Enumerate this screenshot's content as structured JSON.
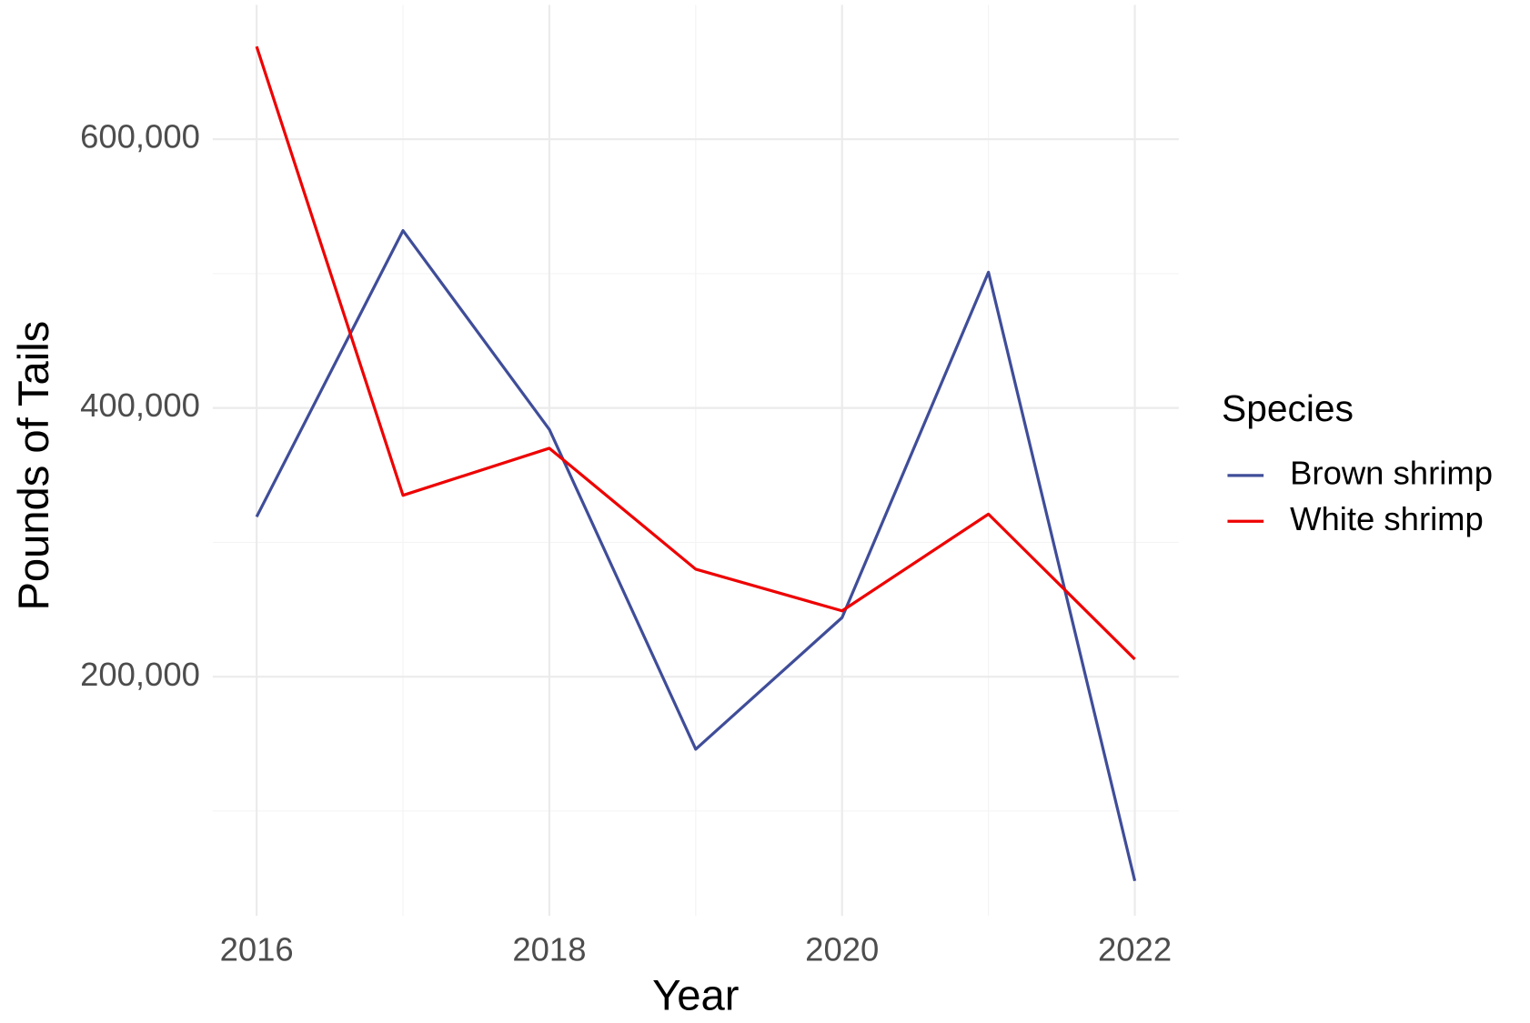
{
  "chart_data": {
    "type": "line",
    "x_label": "Year",
    "y_label": "Pounds of Tails",
    "x": [
      2016,
      2017,
      2018,
      2019,
      2020,
      2021,
      2022
    ],
    "series": [
      {
        "name": "Brown shrimp",
        "color": "#3f4d99",
        "values": [
          319000,
          532000,
          384000,
          146000,
          244000,
          501000,
          48000
        ]
      },
      {
        "name": "White shrimp",
        "color": "#ee0000",
        "values": [
          669000,
          335000,
          370000,
          280000,
          249000,
          321000,
          213000
        ]
      }
    ],
    "xlim": [
      2015.7,
      2022.3
    ],
    "xticks": [
      2016,
      2018,
      2020,
      2022
    ],
    "x_minor_grid": [
      2017,
      2019,
      2021
    ],
    "ylim": [
      22000,
      700000
    ],
    "yticks": [
      {
        "value": 200000,
        "label": "200,000"
      },
      {
        "value": 400000,
        "label": "400,000"
      },
      {
        "value": 600000,
        "label": "600,000"
      }
    ],
    "y_minor_grid": [
      100000,
      300000,
      500000
    ],
    "grid": true,
    "legend_title": "Species",
    "legend_position": "right"
  }
}
